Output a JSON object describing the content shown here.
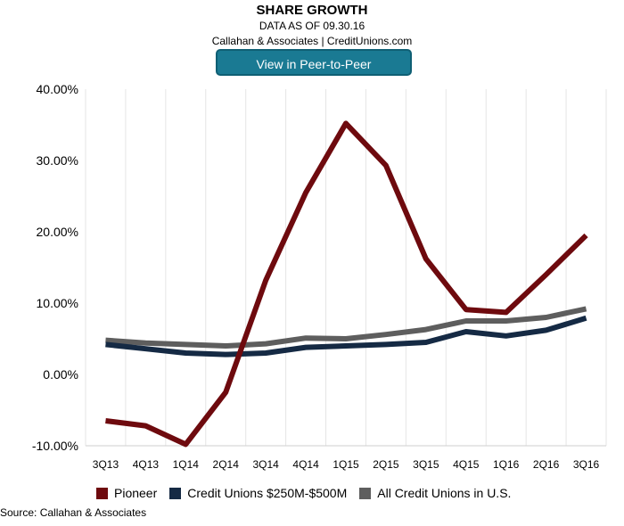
{
  "header": {
    "title": "SHARE GROWTH",
    "subtitle": "DATA AS OF 09.30.16",
    "source_line": "Callahan & Associates | CreditUnions.com"
  },
  "cta_label": "View in Peer-to-Peer",
  "footer": {
    "source": "Source: Callahan & Associates"
  },
  "chart_data": {
    "type": "line",
    "categories": [
      "3Q13",
      "4Q13",
      "1Q14",
      "2Q14",
      "3Q14",
      "4Q14",
      "1Q15",
      "2Q15",
      "3Q15",
      "4Q15",
      "1Q16",
      "2Q16",
      "3Q16"
    ],
    "y_ticks": [
      "-10.00%",
      "0.00%",
      "10.00%",
      "20.00%",
      "30.00%",
      "40.00%"
    ],
    "ylim": [
      -10,
      40
    ],
    "grid": "vertical",
    "legend_position": "bottom",
    "series": [
      {
        "name": "Pioneer",
        "color": "#6e0a0e",
        "values": [
          -6.5,
          -7.2,
          -9.8,
          -2.5,
          13.2,
          25.5,
          35.2,
          29.3,
          16.2,
          9.1,
          8.7,
          14.0,
          19.5
        ]
      },
      {
        "name": "Credit Unions $250M-$500M",
        "color": "#152a44",
        "values": [
          4.2,
          3.6,
          3.0,
          2.8,
          3.0,
          3.8,
          4.0,
          4.2,
          4.5,
          6.0,
          5.4,
          6.2,
          7.9
        ]
      },
      {
        "name": "All Credit Unions in U.S.",
        "color": "#5e5e5e",
        "values": [
          4.8,
          4.4,
          4.2,
          4.0,
          4.3,
          5.1,
          5.0,
          5.6,
          6.3,
          7.5,
          7.5,
          8.0,
          9.2
        ]
      }
    ]
  }
}
